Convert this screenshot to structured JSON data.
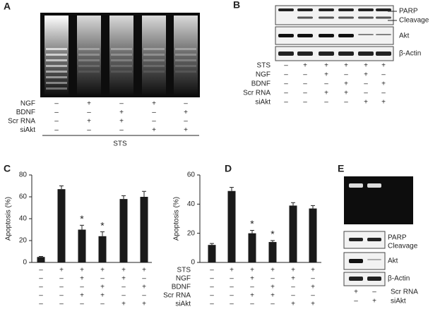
{
  "panel_labels": [
    "A",
    "B",
    "C",
    "D",
    "E"
  ],
  "panel_a": {
    "rows": [
      {
        "label": "NGF",
        "signs": [
          "–",
          "+",
          "–",
          "+",
          "–"
        ]
      },
      {
        "label": "BDNF",
        "signs": [
          "–",
          "–",
          "+",
          "–",
          "+"
        ]
      },
      {
        "label": "Scr RNA",
        "signs": [
          "–",
          "+",
          "+",
          "–",
          "–"
        ]
      },
      {
        "label": "siAkt",
        "signs": [
          "–",
          "–",
          "–",
          "+",
          "+"
        ]
      }
    ],
    "footer": "STS"
  },
  "panel_b": {
    "bands": [
      "PARP",
      "Cleavage",
      "Akt",
      "β-Actin"
    ],
    "rows": [
      {
        "label": "STS",
        "signs": [
          "–",
          "+",
          "+",
          "+",
          "+",
          "+"
        ]
      },
      {
        "label": "NGF",
        "signs": [
          "–",
          "–",
          "+",
          "–",
          "+",
          "–"
        ]
      },
      {
        "label": "BDNF",
        "signs": [
          "–",
          "–",
          "–",
          "+",
          "–",
          "+"
        ]
      },
      {
        "label": "Scr RNA",
        "signs": [
          "–",
          "–",
          "+",
          "+",
          "–",
          "–"
        ]
      },
      {
        "label": "siAkt",
        "signs": [
          "–",
          "–",
          "–",
          "–",
          "+",
          "+"
        ]
      }
    ]
  },
  "chart_data": [
    {
      "type": "bar",
      "y_label": "Apoptosis (%)",
      "values": [
        5,
        67,
        30,
        24,
        58,
        60
      ],
      "errors": [
        0.5,
        3,
        4,
        4,
        3,
        5
      ],
      "color": "#1a1a1a",
      "ylim": [
        0,
        80
      ],
      "yticks": [
        0,
        20,
        40,
        60,
        80
      ],
      "annotations": [
        {
          "text": "*",
          "index": 2
        },
        {
          "text": "*",
          "index": 3
        }
      ],
      "condition_rows": [
        [
          "–",
          "+",
          "+",
          "+",
          "+",
          "+"
        ],
        [
          "–",
          "–",
          "+",
          "–",
          "+",
          "–"
        ],
        [
          "–",
          "–",
          "–",
          "+",
          "–",
          "+"
        ],
        [
          "–",
          "–",
          "+",
          "+",
          "–",
          "–"
        ],
        [
          "–",
          "–",
          "–",
          "–",
          "+",
          "+"
        ]
      ]
    },
    {
      "type": "bar",
      "y_label": "Apoptosis (%)",
      "values": [
        12,
        49,
        20,
        14,
        39,
        37
      ],
      "errors": [
        1,
        2.5,
        2,
        1,
        2,
        2
      ],
      "color": "#1a1a1a",
      "ylim": [
        0,
        60
      ],
      "yticks": [
        0,
        20,
        40,
        60
      ],
      "annotations": [
        {
          "text": "*",
          "index": 2
        },
        {
          "text": "*",
          "index": 3
        }
      ],
      "condition_rows": [
        {
          "label": "STS",
          "signs": [
            "–",
            "+",
            "+",
            "+",
            "+",
            "+"
          ]
        },
        {
          "label": "NGF",
          "signs": [
            "–",
            "–",
            "+",
            "–",
            "+",
            "–"
          ]
        },
        {
          "label": "BDNF",
          "signs": [
            "–",
            "–",
            "–",
            "+",
            "–",
            "+"
          ]
        },
        {
          "label": "Scr RNA",
          "signs": [
            "–",
            "–",
            "+",
            "+",
            "–",
            "–"
          ]
        },
        {
          "label": "siAkt",
          "signs": [
            "–",
            "–",
            "–",
            "–",
            "+",
            "+"
          ]
        }
      ]
    }
  ],
  "panel_e": {
    "bands": [
      "PARP",
      "Cleavage",
      "Akt",
      "β-Actin"
    ],
    "rows": [
      {
        "label": "Scr RNA",
        "signs": [
          "+",
          "–"
        ]
      },
      {
        "label": "siAkt",
        "signs": [
          "–",
          "+"
        ]
      }
    ]
  }
}
